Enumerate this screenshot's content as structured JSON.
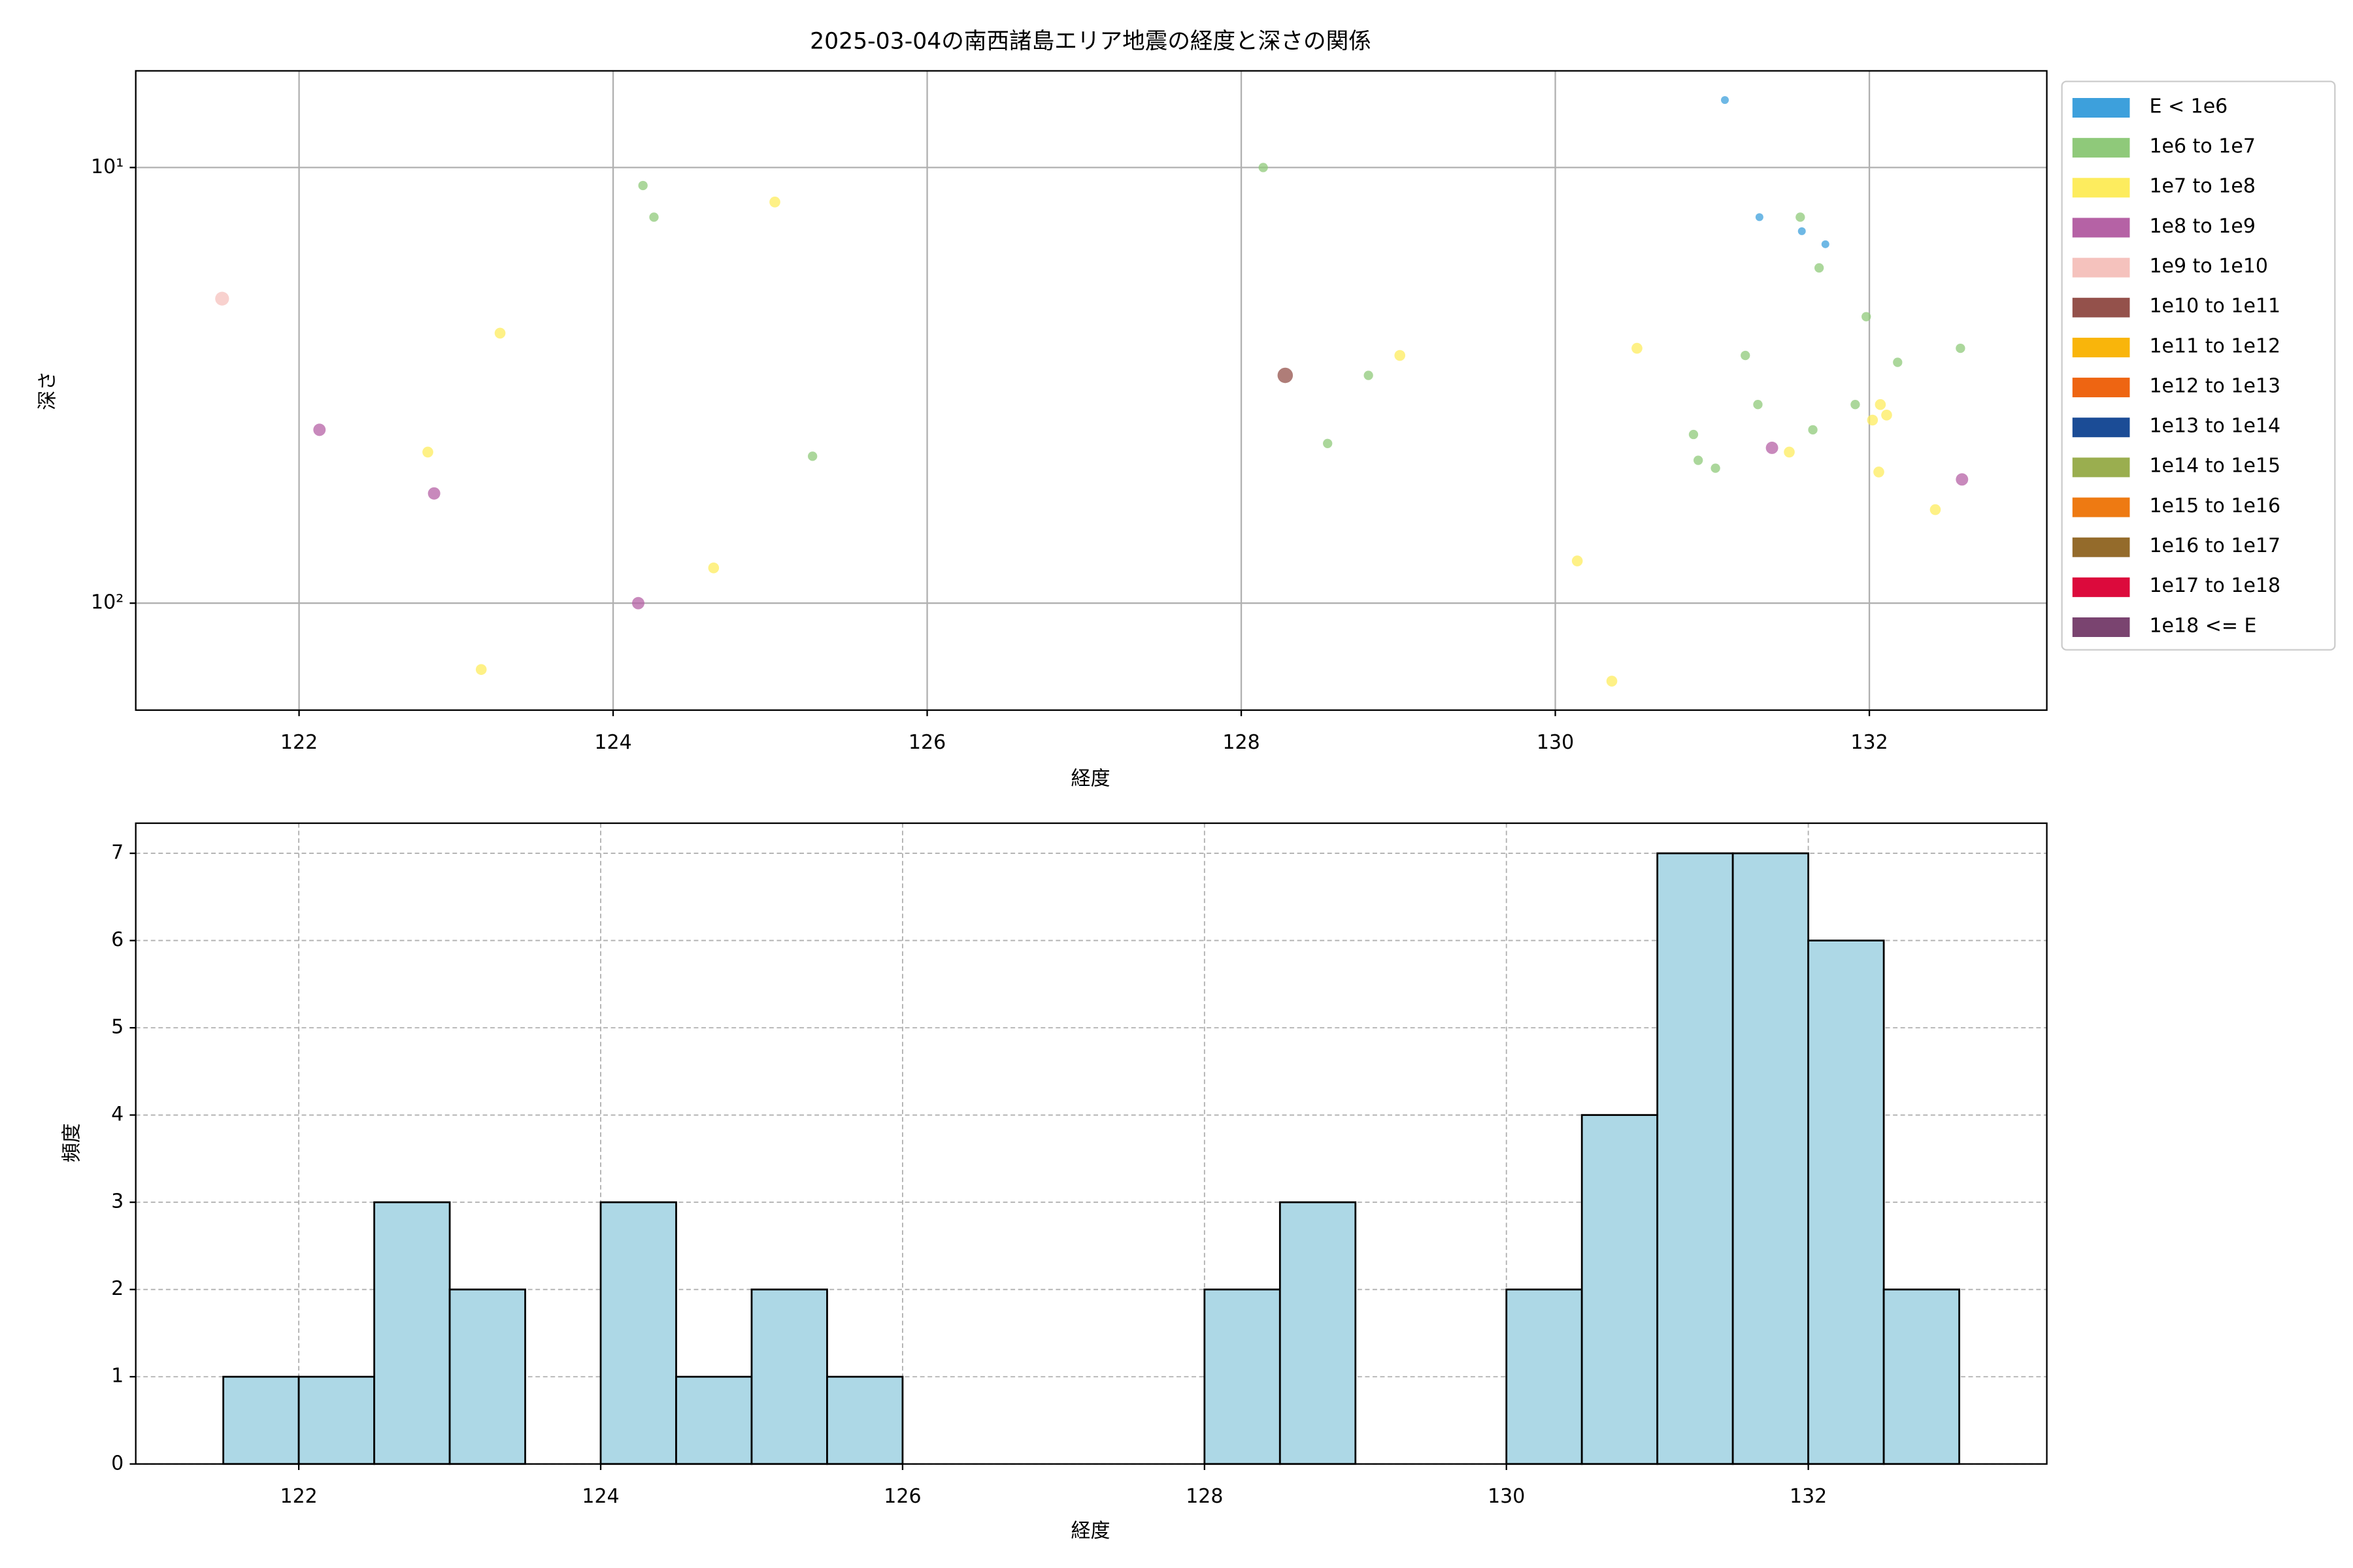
{
  "chart_data": [
    {
      "type": "scatter",
      "title": "2025-03-04の南西諸島エリア地震の経度と深さの関係",
      "xlabel": "経度",
      "ylabel": "深さ",
      "xlim": [
        120.96,
        133.13
      ],
      "ylim": [
        6,
        176
      ],
      "yscale": "log",
      "y_inverted": true,
      "xticks": [
        122,
        124,
        126,
        128,
        130,
        132
      ],
      "yticks": [
        {
          "value": 10,
          "label": "10¹"
        },
        {
          "value": 100,
          "label": "10²"
        }
      ],
      "grid": true,
      "legend": "outside right",
      "series": [
        {
          "name": "E < 1e6",
          "color": "#3da0dc",
          "x": [
            131.08,
            131.3,
            131.57,
            131.72
          ],
          "y": [
            7,
            13,
            14,
            15
          ]
        },
        {
          "name": "1e6 to 1e7",
          "color": "#8fc97a",
          "x": [
            124.19,
            124.26,
            125.27,
            128.14,
            128.55,
            128.81,
            130.88,
            130.91,
            131.02,
            131.21,
            131.29,
            131.56,
            131.68,
            131.64,
            131.91,
            131.98,
            132.18,
            132.58
          ],
          "y": [
            11,
            13,
            46,
            10,
            43,
            30,
            41,
            47,
            49,
            27,
            35,
            13,
            17,
            40,
            35,
            22,
            28,
            26
          ]
        },
        {
          "name": "1e7 to 1e8",
          "color": "#fdec5e",
          "x": [
            123.28,
            122.82,
            123.16,
            124.64,
            125.03,
            129.01,
            130.14,
            130.36,
            130.52,
            131.49,
            132.02,
            132.07,
            132.11,
            132.06,
            132.42
          ],
          "y": [
            24,
            45,
            142,
            83,
            12,
            27,
            80,
            151,
            26,
            45,
            38,
            35,
            37,
            50,
            61
          ]
        },
        {
          "name": "1e8 to 1e9",
          "color": "#b562a5",
          "x": [
            122.13,
            122.86,
            124.16,
            131.38,
            132.59
          ],
          "y": [
            40,
            56,
            100,
            44,
            52
          ]
        },
        {
          "name": "1e9 to 1e10",
          "color": "#f5c2bd",
          "x": [
            121.51
          ],
          "y": [
            20
          ]
        },
        {
          "name": "1e10 to 1e11",
          "color": "#94514b",
          "x": [
            128.28
          ],
          "y": [
            30
          ]
        },
        {
          "name": "1e11 to 1e12",
          "color": "#f9b50b",
          "x": [],
          "y": []
        },
        {
          "name": "1e12 to 1e13",
          "color": "#ee6512",
          "x": [],
          "y": []
        },
        {
          "name": "1e13 to 1e14",
          "color": "#1b4c96",
          "x": [],
          "y": []
        },
        {
          "name": "1e14 to 1e15",
          "color": "#9aae4f",
          "x": [],
          "y": []
        },
        {
          "name": "1e15 to 1e16",
          "color": "#ee7a12",
          "x": [],
          "y": []
        },
        {
          "name": "1e16 to 1e17",
          "color": "#946b2b",
          "x": [],
          "y": []
        },
        {
          "name": "1e17 to 1e18",
          "color": "#dc0a3c",
          "x": [],
          "y": []
        },
        {
          "name": "1e18 <= E",
          "color": "#7a4470",
          "x": [],
          "y": []
        }
      ]
    },
    {
      "type": "histogram",
      "xlabel": "経度",
      "ylabel": "頻度",
      "bins": [
        121.5,
        122,
        122.5,
        123,
        123.5,
        124,
        124.5,
        125,
        125.5,
        126,
        126.5,
        127,
        127.5,
        128,
        128.5,
        129,
        129.5,
        130,
        130.5,
        131,
        131.5,
        132,
        132.5,
        133
      ],
      "counts": [
        1,
        1,
        3,
        2,
        0,
        3,
        1,
        2,
        1,
        0,
        0,
        0,
        0,
        2,
        3,
        0,
        0,
        2,
        4,
        7,
        7,
        6,
        2
      ],
      "color": "#add8e6",
      "edgecolor": "#000000",
      "xlim": [
        120.92,
        133.58
      ],
      "ylim": [
        0,
        7.345
      ],
      "xticks": [
        122,
        124,
        126,
        128,
        130,
        132
      ],
      "yticks": [
        0,
        1,
        2,
        3,
        4,
        5,
        6,
        7
      ],
      "grid": true
    }
  ]
}
